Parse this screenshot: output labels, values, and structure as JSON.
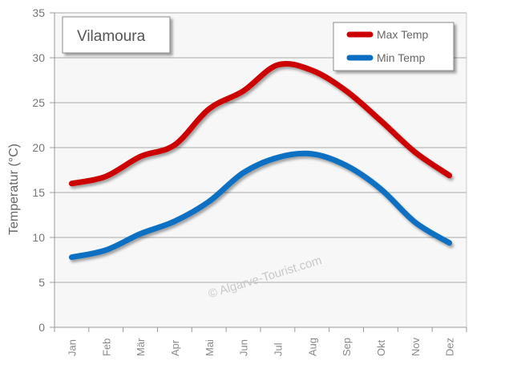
{
  "chart_data": {
    "type": "line",
    "title": "Vilamoura",
    "ylabel": "Temperatur (°C)",
    "xlabel": "",
    "ylim": [
      0,
      35
    ],
    "yticks": [
      0,
      5,
      10,
      15,
      20,
      25,
      30,
      35
    ],
    "categories": [
      "Jan",
      "Feb",
      "Mär",
      "Apr",
      "Mai",
      "Jun",
      "Jul",
      "Aug",
      "Sep",
      "Okt",
      "Nov",
      "Dez"
    ],
    "series": [
      {
        "name": "Max Temp",
        "color": "#cc0000",
        "values": [
          16.0,
          16.8,
          19.0,
          20.3,
          24.3,
          26.3,
          29.2,
          28.6,
          26.3,
          23.0,
          19.5,
          16.9
        ]
      },
      {
        "name": "Min Temp",
        "color": "#0a6fc2",
        "values": [
          7.8,
          8.6,
          10.4,
          11.8,
          14.0,
          17.2,
          18.9,
          19.3,
          18.0,
          15.4,
          11.7,
          9.4
        ]
      }
    ],
    "legend": "top-right",
    "grid": true,
    "watermark": "© Algarve-Tourist.com"
  }
}
